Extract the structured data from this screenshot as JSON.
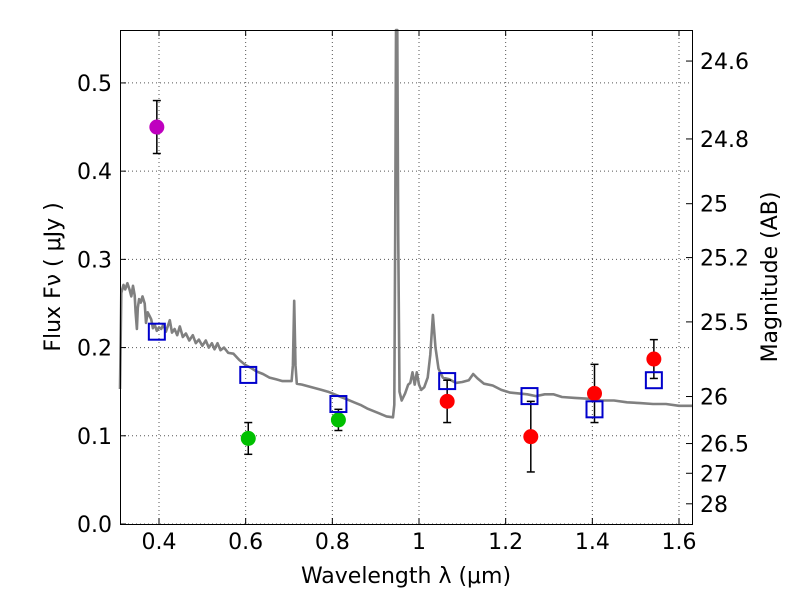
{
  "chart_data": {
    "type": "scatter",
    "title": "",
    "xlabel": "Wavelength  λ (μm)",
    "ylabel": "Flux  Fν  ( μJy )",
    "y2label": "Magnitude (AB)",
    "xlim": [
      0.31,
      1.63
    ],
    "ylim": [
      0.0,
      0.56
    ],
    "grid": true,
    "xticks": [
      {
        "v": 0.4,
        "label": "0.4"
      },
      {
        "v": 0.6,
        "label": "0.6"
      },
      {
        "v": 0.8,
        "label": "0.8"
      },
      {
        "v": 1.0,
        "label": "1"
      },
      {
        "v": 1.2,
        "label": "1.2"
      },
      {
        "v": 1.4,
        "label": "1.4"
      },
      {
        "v": 1.6,
        "label": "1.6"
      }
    ],
    "yticks": [
      {
        "v": 0.0,
        "label": "0.0"
      },
      {
        "v": 0.1,
        "label": "0.1"
      },
      {
        "v": 0.2,
        "label": "0.2"
      },
      {
        "v": 0.3,
        "label": "0.3"
      },
      {
        "v": 0.4,
        "label": "0.4"
      },
      {
        "v": 0.5,
        "label": "0.5"
      }
    ],
    "y2ticks": [
      {
        "flux": 0.5248,
        "label": "24.6"
      },
      {
        "flux": 0.4365,
        "label": "24.8"
      },
      {
        "flux": 0.3631,
        "label": "25"
      },
      {
        "flux": 0.302,
        "label": "25.2"
      },
      {
        "flux": 0.2291,
        "label": "25.5"
      },
      {
        "flux": 0.1445,
        "label": "26"
      },
      {
        "flux": 0.0912,
        "label": "26.5"
      },
      {
        "flux": 0.0575,
        "label": "27"
      },
      {
        "flux": 0.0229,
        "label": "28"
      }
    ],
    "series": [
      {
        "name": "purple",
        "color": "#bf00bf",
        "points": [
          {
            "x": 0.395,
            "y": 0.45,
            "err": 0.03
          }
        ]
      },
      {
        "name": "green",
        "color": "#00c000",
        "points": [
          {
            "x": 0.606,
            "y": 0.097,
            "err": 0.018
          },
          {
            "x": 0.814,
            "y": 0.118,
            "err": 0.012
          }
        ]
      },
      {
        "name": "red",
        "color": "#ff0000",
        "points": [
          {
            "x": 1.065,
            "y": 0.139,
            "err": 0.024
          },
          {
            "x": 1.258,
            "y": 0.099,
            "err": 0.04
          },
          {
            "x": 1.405,
            "y": 0.148,
            "err": 0.033
          },
          {
            "x": 1.542,
            "y": 0.187,
            "err": 0.022
          }
        ]
      }
    ],
    "model_points": {
      "name": "model",
      "color": "#0000cc",
      "points": [
        {
          "x": 0.395,
          "y": 0.218
        },
        {
          "x": 0.606,
          "y": 0.169
        },
        {
          "x": 0.814,
          "y": 0.136
        },
        {
          "x": 1.065,
          "y": 0.162
        },
        {
          "x": 1.255,
          "y": 0.145
        },
        {
          "x": 1.405,
          "y": 0.13
        },
        {
          "x": 1.542,
          "y": 0.163
        }
      ]
    },
    "spectrum": {
      "color": "#808080",
      "points": [
        [
          0.31,
          0.153
        ],
        [
          0.313,
          0.262
        ],
        [
          0.318,
          0.271
        ],
        [
          0.322,
          0.266
        ],
        [
          0.327,
          0.273
        ],
        [
          0.332,
          0.266
        ],
        [
          0.336,
          0.258
        ],
        [
          0.34,
          0.27
        ],
        [
          0.344,
          0.259
        ],
        [
          0.346,
          0.24
        ],
        [
          0.349,
          0.221
        ],
        [
          0.351,
          0.245
        ],
        [
          0.354,
          0.255
        ],
        [
          0.358,
          0.251
        ],
        [
          0.362,
          0.258
        ],
        [
          0.367,
          0.25
        ],
        [
          0.37,
          0.228
        ],
        [
          0.374,
          0.24
        ],
        [
          0.378,
          0.236
        ],
        [
          0.382,
          0.232
        ],
        [
          0.386,
          0.222
        ],
        [
          0.39,
          0.226
        ],
        [
          0.395,
          0.219
        ],
        [
          0.4,
          0.223
        ],
        [
          0.405,
          0.221
        ],
        [
          0.41,
          0.226
        ],
        [
          0.416,
          0.218
        ],
        [
          0.42,
          0.224
        ],
        [
          0.425,
          0.231
        ],
        [
          0.43,
          0.217
        ],
        [
          0.436,
          0.221
        ],
        [
          0.442,
          0.214
        ],
        [
          0.448,
          0.224
        ],
        [
          0.455,
          0.212
        ],
        [
          0.462,
          0.216
        ],
        [
          0.47,
          0.208
        ],
        [
          0.478,
          0.214
        ],
        [
          0.485,
          0.205
        ],
        [
          0.492,
          0.209
        ],
        [
          0.5,
          0.202
        ],
        [
          0.508,
          0.208
        ],
        [
          0.515,
          0.2
        ],
        [
          0.522,
          0.205
        ],
        [
          0.528,
          0.198
        ],
        [
          0.535,
          0.205
        ],
        [
          0.542,
          0.197
        ],
        [
          0.55,
          0.2
        ],
        [
          0.56,
          0.194
        ],
        [
          0.572,
          0.193
        ],
        [
          0.585,
          0.186
        ],
        [
          0.6,
          0.18
        ],
        [
          0.612,
          0.177
        ],
        [
          0.625,
          0.173
        ],
        [
          0.64,
          0.17
        ],
        [
          0.655,
          0.166
        ],
        [
          0.67,
          0.164
        ],
        [
          0.685,
          0.162
        ],
        [
          0.7,
          0.162
        ],
        [
          0.706,
          0.162
        ],
        [
          0.709,
          0.18
        ],
        [
          0.712,
          0.253
        ],
        [
          0.715,
          0.18
        ],
        [
          0.718,
          0.159
        ],
        [
          0.73,
          0.158
        ],
        [
          0.745,
          0.156
        ],
        [
          0.76,
          0.154
        ],
        [
          0.775,
          0.152
        ],
        [
          0.79,
          0.15
        ],
        [
          0.805,
          0.147
        ],
        [
          0.82,
          0.144
        ],
        [
          0.835,
          0.141
        ],
        [
          0.85,
          0.138
        ],
        [
          0.865,
          0.135
        ],
        [
          0.88,
          0.131
        ],
        [
          0.895,
          0.128
        ],
        [
          0.91,
          0.125
        ],
        [
          0.925,
          0.122
        ],
        [
          0.94,
          0.121
        ],
        [
          0.943,
          0.135
        ],
        [
          0.945,
          0.33
        ],
        [
          0.947,
          0.56
        ],
        [
          0.95,
          0.56
        ],
        [
          0.952,
          0.33
        ],
        [
          0.955,
          0.15
        ],
        [
          0.96,
          0.14
        ],
        [
          0.968,
          0.148
        ],
        [
          0.975,
          0.158
        ],
        [
          0.98,
          0.16
        ],
        [
          0.985,
          0.172
        ],
        [
          0.99,
          0.158
        ],
        [
          0.995,
          0.172
        ],
        [
          1.0,
          0.158
        ],
        [
          1.005,
          0.152
        ],
        [
          1.012,
          0.155
        ],
        [
          1.02,
          0.166
        ],
        [
          1.026,
          0.192
        ],
        [
          1.032,
          0.237
        ],
        [
          1.038,
          0.2
        ],
        [
          1.045,
          0.176
        ],
        [
          1.055,
          0.166
        ],
        [
          1.07,
          0.164
        ],
        [
          1.085,
          0.16
        ],
        [
          1.1,
          0.161
        ],
        [
          1.115,
          0.163
        ],
        [
          1.125,
          0.17
        ],
        [
          1.135,
          0.165
        ],
        [
          1.15,
          0.159
        ],
        [
          1.17,
          0.157
        ],
        [
          1.19,
          0.152
        ],
        [
          1.21,
          0.149
        ],
        [
          1.23,
          0.148
        ],
        [
          1.25,
          0.147
        ],
        [
          1.27,
          0.145
        ],
        [
          1.29,
          0.147
        ],
        [
          1.31,
          0.147
        ],
        [
          1.33,
          0.144
        ],
        [
          1.36,
          0.143
        ],
        [
          1.39,
          0.142
        ],
        [
          1.42,
          0.14
        ],
        [
          1.45,
          0.14
        ],
        [
          1.48,
          0.138
        ],
        [
          1.51,
          0.137
        ],
        [
          1.54,
          0.136
        ],
        [
          1.57,
          0.136
        ],
        [
          1.6,
          0.134
        ],
        [
          1.63,
          0.134
        ]
      ]
    }
  }
}
